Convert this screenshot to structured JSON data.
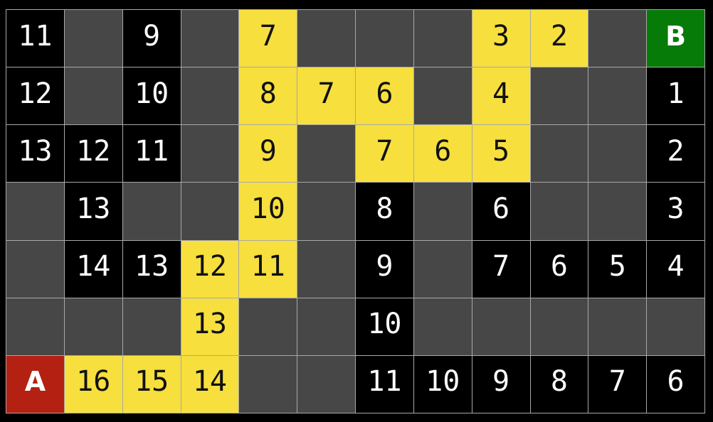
{
  "colors": {
    "background": "#000000",
    "gridline": "#a8a8a8",
    "unvisited": "#474747",
    "visited": "#000000",
    "path": "#f7df3e",
    "start": "#b42112",
    "goal": "#077b07",
    "text_light": "#ffffff",
    "text_dark": "#111111"
  },
  "grid": {
    "rows": 7,
    "cols": 12,
    "start_label": "A",
    "goal_label": "B",
    "cells": [
      [
        {
          "type": "visited",
          "label": "11"
        },
        {
          "type": "unvisited",
          "label": ""
        },
        {
          "type": "visited",
          "label": "9"
        },
        {
          "type": "unvisited",
          "label": ""
        },
        {
          "type": "path",
          "label": "7"
        },
        {
          "type": "unvisited",
          "label": ""
        },
        {
          "type": "unvisited",
          "label": ""
        },
        {
          "type": "unvisited",
          "label": ""
        },
        {
          "type": "path",
          "label": "3"
        },
        {
          "type": "path",
          "label": "2"
        },
        {
          "type": "unvisited",
          "label": ""
        },
        {
          "type": "goal",
          "label": "B"
        }
      ],
      [
        {
          "type": "visited",
          "label": "12"
        },
        {
          "type": "unvisited",
          "label": ""
        },
        {
          "type": "visited",
          "label": "10"
        },
        {
          "type": "unvisited",
          "label": ""
        },
        {
          "type": "path",
          "label": "8"
        },
        {
          "type": "path",
          "label": "7"
        },
        {
          "type": "path",
          "label": "6"
        },
        {
          "type": "unvisited",
          "label": ""
        },
        {
          "type": "path",
          "label": "4"
        },
        {
          "type": "unvisited",
          "label": ""
        },
        {
          "type": "unvisited",
          "label": ""
        },
        {
          "type": "visited",
          "label": "1"
        }
      ],
      [
        {
          "type": "visited",
          "label": "13"
        },
        {
          "type": "visited",
          "label": "12"
        },
        {
          "type": "visited",
          "label": "11"
        },
        {
          "type": "unvisited",
          "label": ""
        },
        {
          "type": "path",
          "label": "9"
        },
        {
          "type": "unvisited",
          "label": ""
        },
        {
          "type": "path",
          "label": "7"
        },
        {
          "type": "path",
          "label": "6"
        },
        {
          "type": "path",
          "label": "5"
        },
        {
          "type": "unvisited",
          "label": ""
        },
        {
          "type": "unvisited",
          "label": ""
        },
        {
          "type": "visited",
          "label": "2"
        }
      ],
      [
        {
          "type": "unvisited",
          "label": ""
        },
        {
          "type": "visited",
          "label": "13"
        },
        {
          "type": "unvisited",
          "label": ""
        },
        {
          "type": "unvisited",
          "label": ""
        },
        {
          "type": "path",
          "label": "10"
        },
        {
          "type": "unvisited",
          "label": ""
        },
        {
          "type": "visited",
          "label": "8"
        },
        {
          "type": "unvisited",
          "label": ""
        },
        {
          "type": "visited",
          "label": "6"
        },
        {
          "type": "unvisited",
          "label": ""
        },
        {
          "type": "unvisited",
          "label": ""
        },
        {
          "type": "visited",
          "label": "3"
        }
      ],
      [
        {
          "type": "unvisited",
          "label": ""
        },
        {
          "type": "visited",
          "label": "14"
        },
        {
          "type": "visited",
          "label": "13"
        },
        {
          "type": "path",
          "label": "12"
        },
        {
          "type": "path",
          "label": "11"
        },
        {
          "type": "unvisited",
          "label": ""
        },
        {
          "type": "visited",
          "label": "9"
        },
        {
          "type": "unvisited",
          "label": ""
        },
        {
          "type": "visited",
          "label": "7"
        },
        {
          "type": "visited",
          "label": "6"
        },
        {
          "type": "visited",
          "label": "5"
        },
        {
          "type": "visited",
          "label": "4"
        }
      ],
      [
        {
          "type": "unvisited",
          "label": ""
        },
        {
          "type": "unvisited",
          "label": ""
        },
        {
          "type": "unvisited",
          "label": ""
        },
        {
          "type": "path",
          "label": "13"
        },
        {
          "type": "unvisited",
          "label": ""
        },
        {
          "type": "unvisited",
          "label": ""
        },
        {
          "type": "visited",
          "label": "10"
        },
        {
          "type": "unvisited",
          "label": ""
        },
        {
          "type": "unvisited",
          "label": ""
        },
        {
          "type": "unvisited",
          "label": ""
        },
        {
          "type": "unvisited",
          "label": ""
        },
        {
          "type": "unvisited",
          "label": ""
        }
      ],
      [
        {
          "type": "start",
          "label": "A"
        },
        {
          "type": "path",
          "label": "16"
        },
        {
          "type": "path",
          "label": "15"
        },
        {
          "type": "path",
          "label": "14"
        },
        {
          "type": "unvisited",
          "label": ""
        },
        {
          "type": "unvisited",
          "label": ""
        },
        {
          "type": "visited",
          "label": "11"
        },
        {
          "type": "visited",
          "label": "10"
        },
        {
          "type": "visited",
          "label": "9"
        },
        {
          "type": "visited",
          "label": "8"
        },
        {
          "type": "visited",
          "label": "7"
        },
        {
          "type": "visited",
          "label": "6"
        }
      ]
    ]
  }
}
